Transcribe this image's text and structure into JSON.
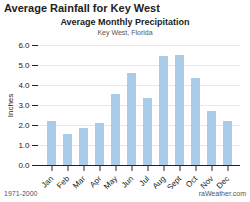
{
  "chart_data": {
    "type": "bar",
    "title": "Average Rainfall for Key West",
    "subtitle": "Key West, Florida",
    "annotations": [
      "Average Monthly Precipitation",
      "1971-2000",
      "raWeather.com"
    ],
    "categories": [
      "Jan",
      "Feb",
      "Mar",
      "Apr",
      "May",
      "Jun",
      "Jul",
      "Aug",
      "Sept",
      "Oct",
      "Nov",
      "Dec"
    ],
    "values": [
      2.2,
      1.55,
      1.85,
      2.1,
      3.55,
      4.6,
      3.35,
      5.45,
      5.5,
      4.35,
      2.7,
      2.2
    ],
    "color": "#aacce8",
    "ylabel": "Inches",
    "ylim": [
      0,
      6.0
    ],
    "yticks": [
      {
        "value": 0,
        "label": "0.0"
      },
      {
        "value": 1,
        "label": "1.0"
      },
      {
        "value": 2,
        "label": "2.0"
      },
      {
        "value": 3,
        "label": "3.0"
      },
      {
        "value": 4,
        "label": "4.0"
      },
      {
        "value": 5,
        "label": "5.0"
      },
      {
        "value": 6,
        "label": "6.0"
      }
    ],
    "grid": true
  }
}
